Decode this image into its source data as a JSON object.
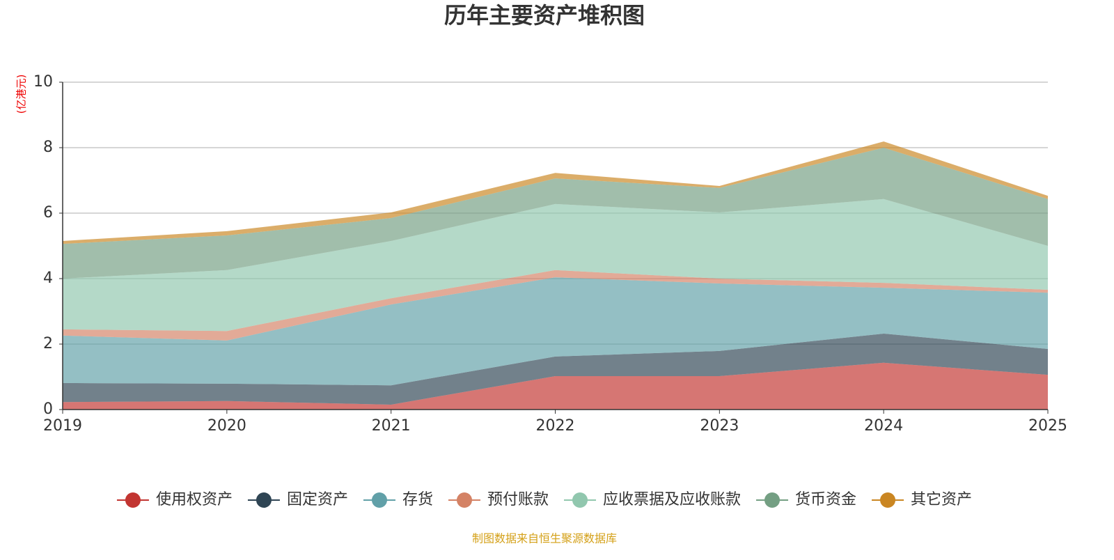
{
  "chart_data": {
    "type": "stacked-area",
    "title": "历年主要资产堆积图",
    "y_unit": "(亿港元)",
    "source": "制图数据来自恒生聚源数据库",
    "categories": [
      "2019",
      "2020",
      "2021",
      "2022",
      "2023",
      "2024",
      "2025"
    ],
    "ylim": [
      0,
      10
    ],
    "yticks": [
      0,
      2,
      4,
      6,
      8,
      10
    ],
    "grid": true,
    "series": [
      {
        "name": "使用权资产",
        "color": "#c23531",
        "values": [
          0.23,
          0.26,
          0.15,
          1.02,
          1.02,
          1.43,
          1.06
        ]
      },
      {
        "name": "固定资产",
        "color": "#2f4554",
        "values": [
          0.58,
          0.53,
          0.59,
          0.6,
          0.77,
          0.89,
          0.79
        ]
      },
      {
        "name": "存货",
        "color": "#61a0a8",
        "values": [
          1.45,
          1.32,
          2.47,
          2.42,
          2.06,
          1.4,
          1.72
        ]
      },
      {
        "name": "预付账款",
        "color": "#d48265",
        "values": [
          0.19,
          0.29,
          0.19,
          0.22,
          0.15,
          0.15,
          0.09
        ]
      },
      {
        "name": "应收票据及应收账款",
        "color": "#91c7ae",
        "values": [
          1.55,
          1.86,
          1.75,
          2.02,
          2.02,
          2.56,
          1.34
        ]
      },
      {
        "name": "货币资金",
        "color": "#749f83",
        "values": [
          1.06,
          1.06,
          0.7,
          0.78,
          0.75,
          1.57,
          1.43
        ]
      },
      {
        "name": "其它资产",
        "color": "#ca8622",
        "values": [
          0.09,
          0.13,
          0.17,
          0.17,
          0.06,
          0.19,
          0.1
        ]
      }
    ]
  }
}
